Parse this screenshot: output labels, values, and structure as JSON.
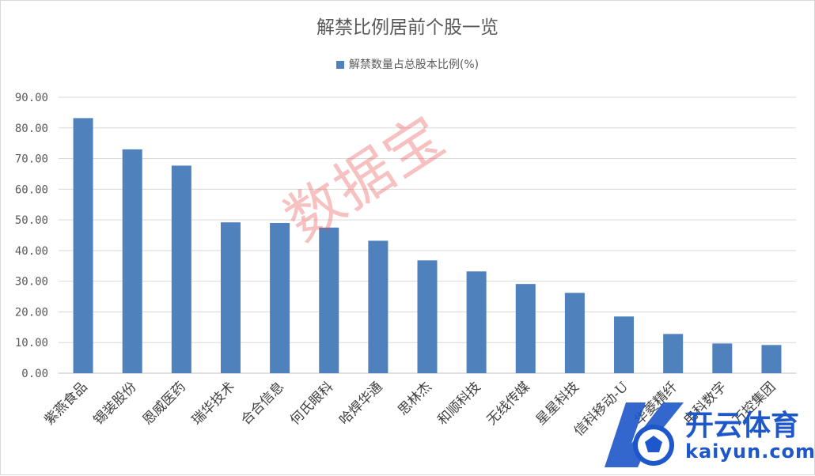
{
  "chart_data": {
    "type": "bar",
    "title": "解禁比例居前个股一览",
    "series": [
      {
        "name": "解禁数量占总股本比例(%)",
        "color": "#4f81bd",
        "values": [
          83.2,
          73.0,
          67.7,
          49.2,
          49.0,
          47.5,
          43.2,
          36.8,
          33.2,
          29.1,
          26.2,
          18.5,
          12.8,
          9.7,
          9.2
        ]
      }
    ],
    "categories": [
      "紫燕食品",
      "锡装股份",
      "恩威医药",
      "瑞华技术",
      "合合信息",
      "何氏眼科",
      "哈焊华通",
      "思林杰",
      "和顺科技",
      "无线传媒",
      "星星科技",
      "信科移动-U",
      "华菱精纤",
      "电科数字",
      "万控集团"
    ],
    "y_ticks": [
      "0.00",
      "10.00",
      "20.00",
      "30.00",
      "40.00",
      "50.00",
      "60.00",
      "70.00",
      "80.00",
      "90.00"
    ],
    "ylim": [
      0,
      90
    ],
    "grid": true,
    "legend_position": "top-center"
  },
  "watermark": {
    "text": "数据宝",
    "color": "#e74c4c"
  },
  "logo": {
    "cn_text": "开云体育",
    "en_text": "kaiyun.com",
    "color": "#1d57c9"
  }
}
